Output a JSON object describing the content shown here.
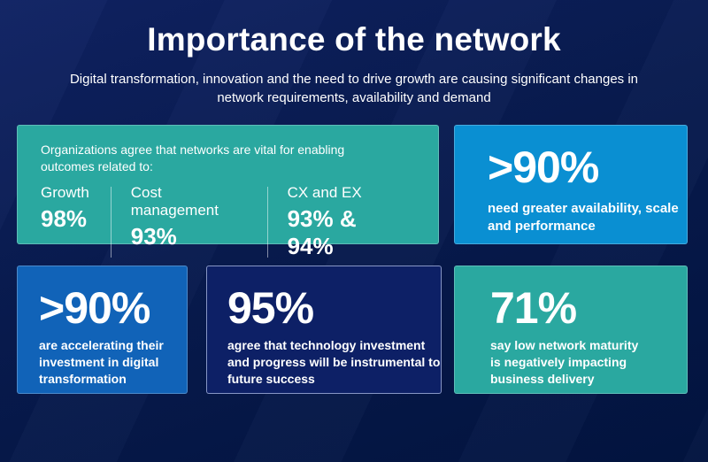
{
  "header": {
    "title": "Importance of the network",
    "subtitle": "Digital transformation, innovation and the need to drive growth are causing significant changes in network requirements, availability and demand",
    "subtitle_lines": [
      "Digital transformation, innovation and the need to drive growth are causing significant changes in",
      "network requirements, availability and demand"
    ]
  },
  "colors": {
    "bg_light": "#0f2263",
    "bg_base": "#081b4f",
    "bg_dark": "#021440",
    "teal": "#2aa8a0",
    "light_blue": "#0a8fd2",
    "medium_blue": "#1163b8",
    "navy_card": "#0d2066",
    "text": "#ffffff"
  },
  "cards": {
    "outcomes": {
      "intro_lines": [
        "Organizations agree that networks are vital for enabling",
        "outcomes related to:"
      ],
      "stats": [
        {
          "label": "Growth",
          "value": "98%"
        },
        {
          "label": "Cost management",
          "value": "93%"
        },
        {
          "label": "CX and EX",
          "value": "93% & 94%"
        }
      ]
    },
    "availability": {
      "value": ">90%",
      "lines": [
        "need greater availability, scale",
        "and performance"
      ]
    },
    "investment": {
      "value": ">90%",
      "lines": [
        "are accelerating their",
        "investment in digital",
        "transformation"
      ]
    },
    "technology": {
      "value": "95%",
      "lines": [
        "agree that technology investment",
        "and progress will be instrumental to",
        "future success"
      ]
    },
    "maturity": {
      "value": "71%",
      "lines": [
        "say low network maturity",
        "is negatively impacting",
        "business delivery"
      ]
    }
  },
  "chart_data": {
    "type": "table",
    "title": "Importance of the network",
    "subtitle": "Digital transformation, innovation and the need to drive growth are causing significant changes in network requirements, availability and demand",
    "metrics": [
      {
        "value": "98%",
        "label": "Organizations agree that networks are vital for enabling outcomes related to: Growth"
      },
      {
        "value": "93%",
        "label": "Organizations agree that networks are vital for enabling outcomes related to: Cost management"
      },
      {
        "value": "93% & 94%",
        "label": "Organizations agree that networks are vital for enabling outcomes related to: CX and EX"
      },
      {
        "value": ">90%",
        "label": "need greater availability, scale and performance"
      },
      {
        "value": ">90%",
        "label": "are accelerating their investment in digital transformation"
      },
      {
        "value": "95%",
        "label": "agree that technology investment and progress will be instrumental to future success"
      },
      {
        "value": "71%",
        "label": "say low network maturity is negatively impacting business delivery"
      }
    ]
  }
}
